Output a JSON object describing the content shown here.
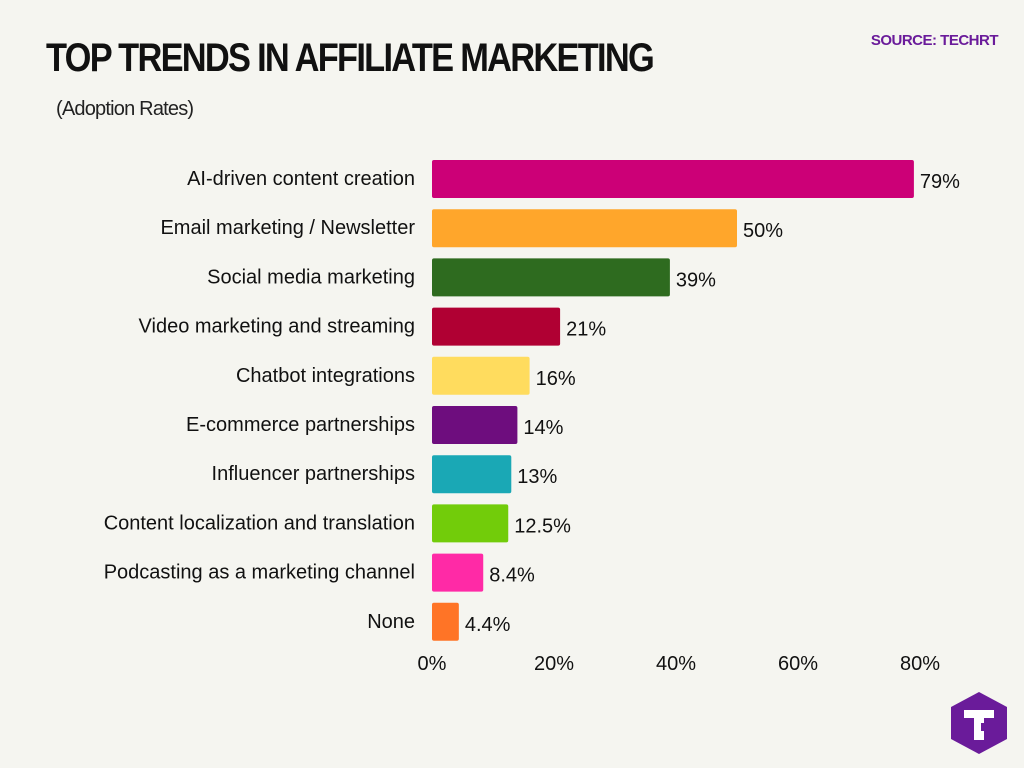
{
  "header": {
    "title": "TOP TRENDS IN AFFILIATE MARKETING",
    "subtitle": "(Adoption Rates)",
    "source": "SOURCE: TECHRT"
  },
  "logo": {
    "icon": "techrt-t-logo-icon",
    "color": "#6a1b9a"
  },
  "chart_data": {
    "type": "bar",
    "orientation": "horizontal",
    "title": "TOP TRENDS IN AFFILIATE MARKETING",
    "subtitle": "(Adoption Rates)",
    "xlim": [
      0,
      80
    ],
    "x_ticks": [
      0,
      20,
      40,
      60,
      80
    ],
    "x_tick_labels": [
      "0%",
      "20%",
      "40%",
      "60%",
      "80%"
    ],
    "grid": false,
    "categories": [
      "AI-driven content creation",
      "Email marketing / Newsletter",
      "Social media marketing",
      "Video marketing and streaming",
      "Chatbot integrations",
      "E-commerce partnerships",
      "Influencer partnerships",
      "Content localization and translation",
      "Podcasting as a marketing channel",
      "None"
    ],
    "values": [
      79,
      50,
      39,
      21,
      16,
      14,
      13,
      12.5,
      8.4,
      4.4
    ],
    "value_labels": [
      "79%",
      "50%",
      "39%",
      "21%",
      "16%",
      "14%",
      "13%",
      "12.5%",
      "8.4%",
      "4.4%"
    ],
    "colors": [
      "#cc0077",
      "#ffa62b",
      "#2e6b1f",
      "#b00033",
      "#ffdc5e",
      "#6e0d7e",
      "#1aa8b5",
      "#72cc0a",
      "#ff2aa6",
      "#ff7426"
    ]
  }
}
